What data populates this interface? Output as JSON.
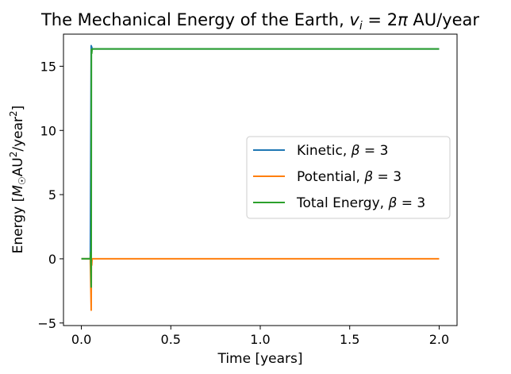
{
  "chart_data": {
    "type": "line",
    "title": "The Mechanical Energy of the Earth, v_i = 2π AU/year",
    "title_parts": {
      "prefix": "The Mechanical Energy of the Earth, ",
      "v": "v",
      "sub": "i",
      "eq": " = 2",
      "pi": "π",
      "suffix": " AU/year"
    },
    "xlabel": "Time [years]",
    "ylabel": "Energy [M☉AU²/year²]",
    "ylabel_parts": {
      "prefix": "Energy [",
      "m": "M",
      "sun": "☉",
      "au": "AU",
      "exp1": "2",
      "year": "/year",
      "exp2": "2",
      "close": "]"
    },
    "xlim": [
      -0.1,
      2.1
    ],
    "ylim": [
      -5.2,
      17.5
    ],
    "xticks": [
      0.0,
      0.5,
      1.0,
      1.5,
      2.0
    ],
    "xtick_labels": [
      "0.0",
      "0.5",
      "1.0",
      "1.5",
      "2.0"
    ],
    "yticks": [
      -5,
      0,
      5,
      10,
      15
    ],
    "ytick_labels": [
      "−5",
      "0",
      "5",
      "10",
      "15"
    ],
    "grid": false,
    "legend_position": "center-right",
    "series": [
      {
        "name": "Kinetic, β = 3",
        "name_parts": {
          "prefix": "Kinetic, ",
          "greek": "β",
          "suffix": " = 3"
        },
        "color": "#1f77b4",
        "x": [
          0.0,
          0.05,
          0.055,
          0.056,
          0.058,
          0.06,
          0.065,
          0.07,
          2.0
        ],
        "y": [
          0.0,
          0.0,
          16.6,
          16.3,
          16.5,
          16.3,
          16.35,
          16.35,
          16.35
        ]
      },
      {
        "name": "Potential, β = 3",
        "name_parts": {
          "prefix": "Potential, ",
          "greek": "β",
          "suffix": " = 3"
        },
        "color": "#ff7f0e",
        "x": [
          0.0,
          0.05,
          0.055,
          0.056,
          0.058,
          0.06,
          0.065,
          2.0
        ],
        "y": [
          0.0,
          0.0,
          -4.0,
          0.0,
          -0.5,
          0.0,
          0.0,
          0.0
        ]
      },
      {
        "name": "Total Energy, β = 3",
        "name_parts": {
          "prefix": "Total Energy, ",
          "greek": "β",
          "suffix": " = 3"
        },
        "color": "#2ca02c",
        "x": [
          0.0,
          0.05,
          0.052,
          0.055,
          0.056,
          0.058,
          0.06,
          0.065,
          2.0
        ],
        "y": [
          0.0,
          0.0,
          0.5,
          -2.2,
          16.3,
          16.0,
          16.35,
          16.35,
          16.35
        ]
      }
    ]
  }
}
